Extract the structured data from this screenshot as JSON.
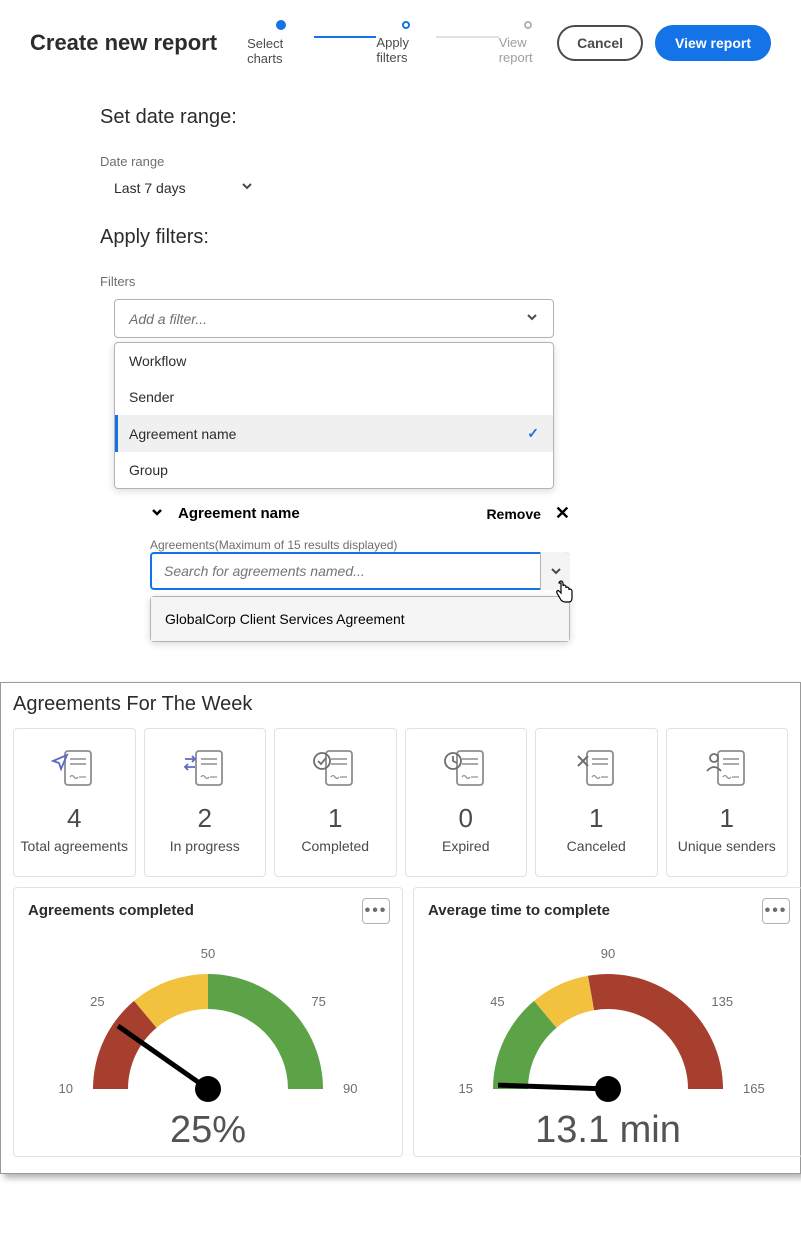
{
  "header": {
    "title": "Create new report",
    "steps": [
      "Select charts",
      "Apply filters",
      "View report"
    ],
    "active_step": 1,
    "cancel_label": "Cancel",
    "view_label": "View report"
  },
  "date_section": {
    "title": "Set date range:",
    "label": "Date range",
    "value": "Last 7 days"
  },
  "filters_section": {
    "title": "Apply filters:",
    "label": "Filters",
    "placeholder": "Add a filter...",
    "options": [
      "Workflow",
      "Sender",
      "Agreement name",
      "Group"
    ],
    "selected": "Agreement name"
  },
  "applied": {
    "name": "Agreement name",
    "remove_label": "Remove",
    "sub_label": "Agreements(Maximum of 15 results displayed)",
    "search_placeholder": "Search for agreements named...",
    "result": "GlobalCorp Client Services Agreement"
  },
  "dashboard": {
    "title": "Agreements For The Week",
    "cards": [
      {
        "value": "4",
        "label": "Total agreements",
        "icon": "send",
        "color": "#5c6ac4"
      },
      {
        "value": "2",
        "label": "In progress",
        "icon": "progress",
        "color": "#5c6ac4"
      },
      {
        "value": "1",
        "label": "Completed",
        "icon": "check",
        "color": "#6e6e6e"
      },
      {
        "value": "0",
        "label": "Expired",
        "icon": "clock",
        "color": "#6e6e6e"
      },
      {
        "value": "1",
        "label": "Canceled",
        "icon": "cancel",
        "color": "#6e6e6e"
      },
      {
        "value": "1",
        "label": "Unique senders",
        "icon": "user",
        "color": "#6e6e6e"
      }
    ],
    "gauges": [
      {
        "title": "Agreements completed",
        "display": "25%",
        "needle_angle": -145,
        "ticks": [
          {
            "label": "10",
            "angle": -180
          },
          {
            "label": "25",
            "angle": -140
          },
          {
            "label": "50",
            "angle": -90
          },
          {
            "label": "75",
            "angle": -40
          },
          {
            "label": "90",
            "angle": 0
          }
        ],
        "segments": [
          {
            "color": "#a63f2e",
            "start": -180,
            "end": -130
          },
          {
            "color": "#f2c23e",
            "start": -130,
            "end": -90
          },
          {
            "color": "#5ba346",
            "start": -90,
            "end": 0
          }
        ]
      },
      {
        "title": "Average time to complete",
        "display": "13.1 min",
        "needle_angle": -178,
        "ticks": [
          {
            "label": "15",
            "angle": -180
          },
          {
            "label": "45",
            "angle": -140
          },
          {
            "label": "90",
            "angle": -90
          },
          {
            "label": "135",
            "angle": -40
          },
          {
            "label": "165",
            "angle": 0
          }
        ],
        "segments": [
          {
            "color": "#5ba346",
            "start": -180,
            "end": -130
          },
          {
            "color": "#f2c23e",
            "start": -130,
            "end": -100
          },
          {
            "color": "#a63f2e",
            "start": -100,
            "end": 0
          }
        ]
      }
    ]
  },
  "colors": {
    "primary": "#1473e6",
    "text": "#2c2c2c",
    "muted": "#6e6e6e",
    "border": "#b3b3b3"
  }
}
